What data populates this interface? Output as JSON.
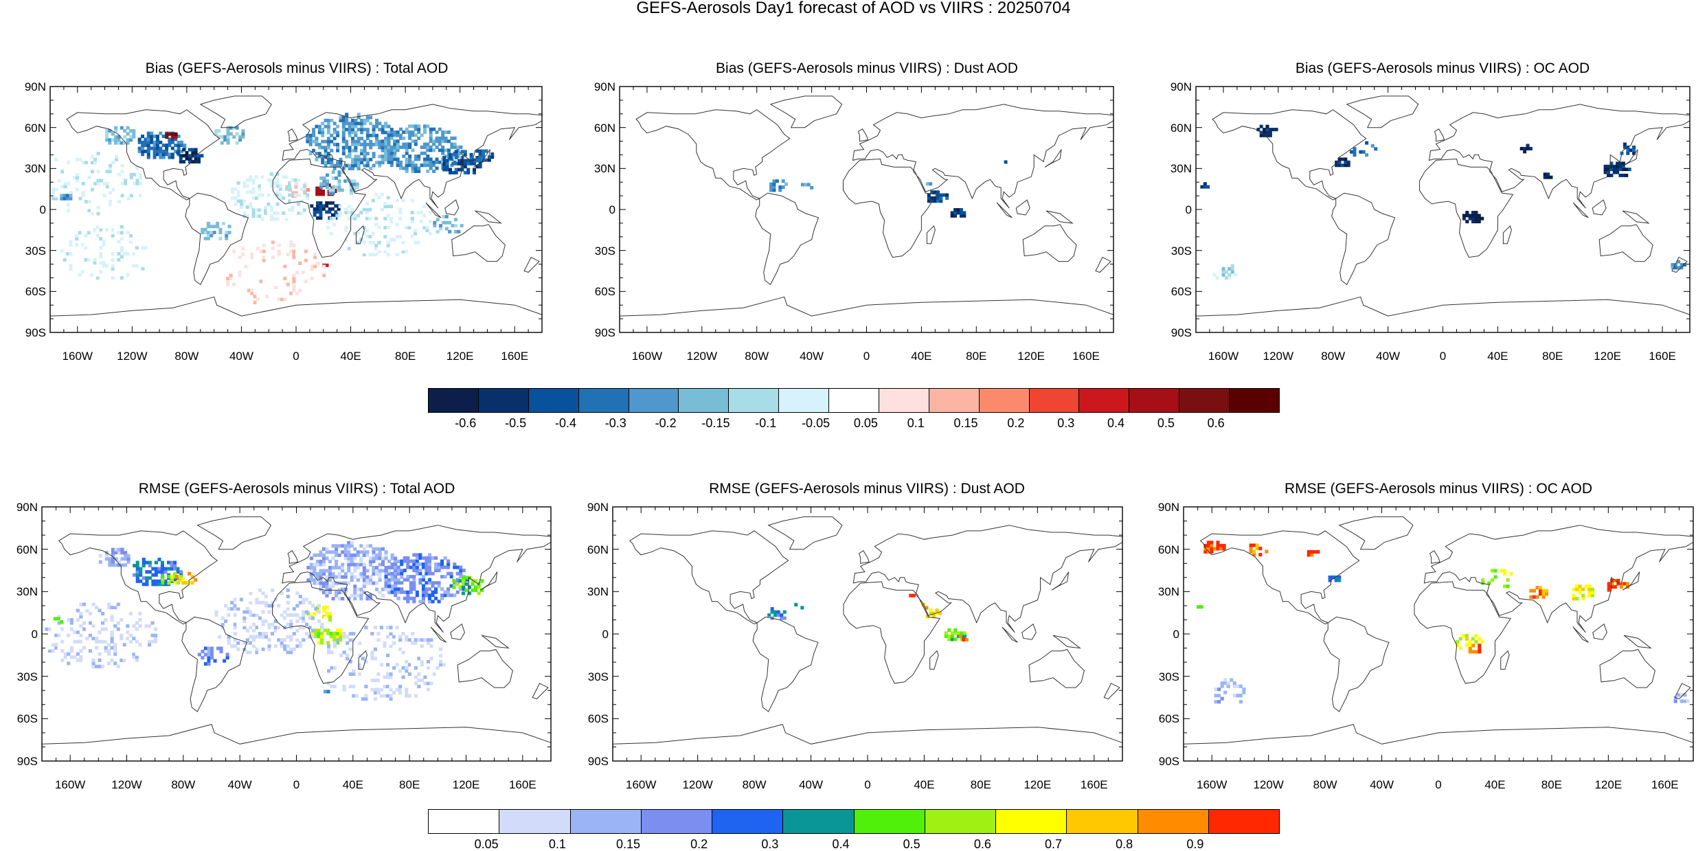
{
  "figure_title": "GEFS-Aerosols Day1 forecast of AOD vs VIIRS : 20250704",
  "lat_labels": [
    "90N",
    "60N",
    "30N",
    "0",
    "30S",
    "60S",
    "90S"
  ],
  "lon_labels": [
    "160W",
    "120W",
    "80W",
    "40W",
    "0",
    "40E",
    "80E",
    "120E",
    "160E"
  ],
  "panels": [
    {
      "title": "Bias (GEFS-Aerosols minus VIIRS) : Total AOD",
      "kind": "bias",
      "field": "total"
    },
    {
      "title": "Bias (GEFS-Aerosols minus VIIRS) : Dust AOD",
      "kind": "bias",
      "field": "dust"
    },
    {
      "title": "Bias (GEFS-Aerosols minus VIIRS) : OC AOD",
      "kind": "bias",
      "field": "oc"
    },
    {
      "title": "RMSE (GEFS-Aerosols minus VIIRS) : Total AOD",
      "kind": "rmse",
      "field": "total"
    },
    {
      "title": "RMSE (GEFS-Aerosols minus VIIRS) : Dust AOD",
      "kind": "rmse",
      "field": "dust"
    },
    {
      "title": "RMSE (GEFS-Aerosols minus VIIRS) : OC AOD",
      "kind": "rmse",
      "field": "oc"
    }
  ],
  "bias_colorbar": {
    "colors": [
      "#0b1f4a",
      "#08306b",
      "#08519c",
      "#2171b5",
      "#4f97cc",
      "#78bcd6",
      "#a8dce6",
      "#d6f2fa",
      "#ffffff",
      "#fee0df",
      "#fcb5a3",
      "#fb8a6c",
      "#ef4532",
      "#cb181d",
      "#a50f15",
      "#7a0f12",
      "#5a0000"
    ],
    "labels": [
      "-0.6",
      "-0.5",
      "-0.4",
      "-0.3",
      "-0.2",
      "-0.15",
      "-0.1",
      "-0.05",
      "0.05",
      "0.1",
      "0.15",
      "0.2",
      "0.3",
      "0.4",
      "0.5",
      "0.6"
    ]
  },
  "rmse_colorbar": {
    "colors": [
      "#ffffff",
      "#d2dcfa",
      "#9bb4f5",
      "#7c8ef0",
      "#1e64f0",
      "#0a9696",
      "#50f00a",
      "#a0f014",
      "#ffff00",
      "#ffc800",
      "#ff8c00",
      "#ff2800"
    ],
    "labels": [
      "0.05",
      "0.1",
      "0.15",
      "0.2",
      "0.3",
      "0.4",
      "0.5",
      "0.6",
      "0.7",
      "0.8",
      "0.9"
    ]
  }
}
